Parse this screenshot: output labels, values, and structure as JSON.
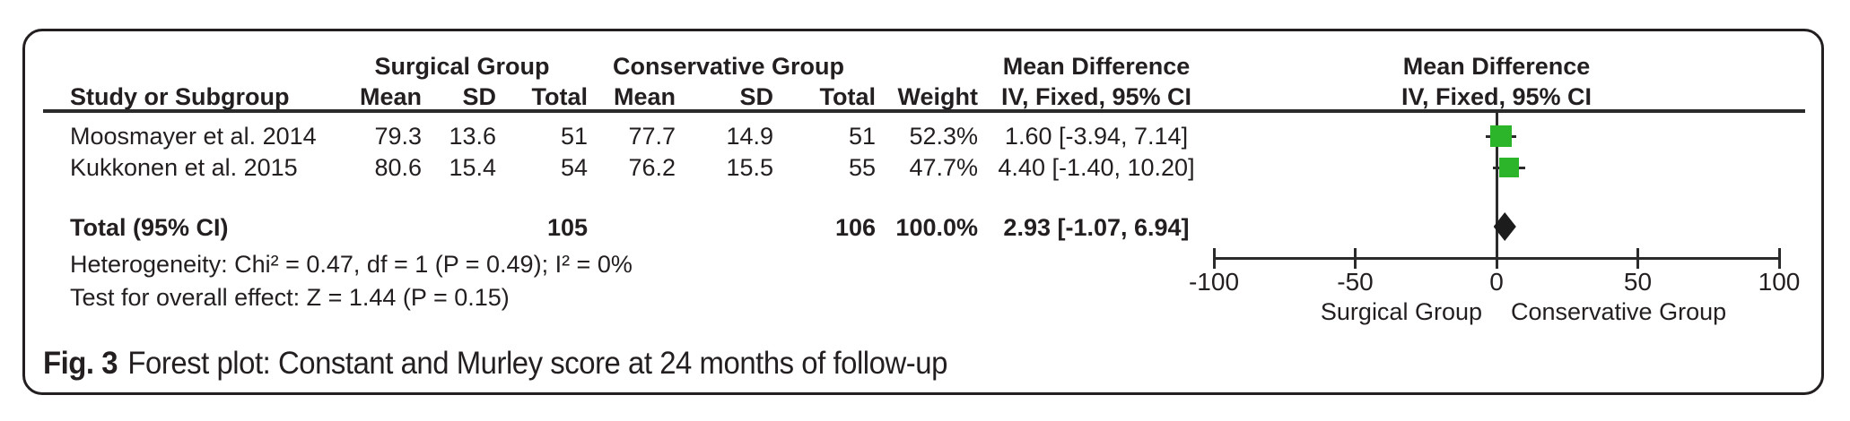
{
  "figure": {
    "caption_label": "Fig. 3",
    "caption_text": "Forest plot: Constant and Murley score at 24 months of follow-up"
  },
  "table": {
    "group_headers": {
      "surgical": "Surgical Group",
      "conservative": "Conservative Group",
      "md_text": "Mean Difference",
      "md_plot": "Mean Difference"
    },
    "col_headers": {
      "study": "Study or Subgroup",
      "mean1": "Mean",
      "sd1": "SD",
      "total1": "Total",
      "mean2": "Mean",
      "sd2": "SD",
      "total2": "Total",
      "weight": "Weight",
      "ci": "IV, Fixed, 95% CI",
      "ci_plot": "IV, Fixed, 95% CI"
    },
    "rows": [
      {
        "study": "Moosmayer et al. 2014",
        "mean1": "79.3",
        "sd1": "13.6",
        "total1": "51",
        "mean2": "77.7",
        "sd2": "14.9",
        "total2": "51",
        "weight": "52.3%",
        "ci": "1.60 [-3.94, 7.14]"
      },
      {
        "study": "Kukkonen et al. 2015",
        "mean1": "80.6",
        "sd1": "15.4",
        "total1": "54",
        "mean2": "76.2",
        "sd2": "15.5",
        "total2": "55",
        "weight": "47.7%",
        "ci": "4.40 [-1.40, 10.20]"
      }
    ],
    "total_row": {
      "label": "Total (95% CI)",
      "total1": "105",
      "total2": "106",
      "weight": "100.0%",
      "ci": "2.93 [-1.07, 6.94]"
    },
    "heterogeneity": "Heterogeneity: Chi² = 0.47, df = 1 (P = 0.49); I² = 0%",
    "overall_effect": "Test for overall effect: Z = 1.44 (P = 0.15)"
  },
  "axis_group_labels": {
    "left": "Surgical Group",
    "right": "Conservative Group"
  },
  "chart_data": {
    "type": "forest",
    "title": "Forest plot: Constant and Murley score at 24 months of follow-up",
    "effect_measure": "Mean Difference IV, Fixed, 95% CI",
    "studies": [
      {
        "name": "Moosmayer et al. 2014",
        "md": 1.6,
        "ci_low": -3.94,
        "ci_high": 7.14,
        "weight_pct": 52.3
      },
      {
        "name": "Kukkonen et al. 2015",
        "md": 4.4,
        "ci_low": -1.4,
        "ci_high": 10.2,
        "weight_pct": 47.7
      }
    ],
    "total": {
      "label": "Total (95% CI)",
      "md": 2.93,
      "ci_low": -1.07,
      "ci_high": 6.94,
      "weight_pct": 100.0
    },
    "heterogeneity": {
      "chi2": 0.47,
      "df": 1,
      "p": 0.49,
      "i2_pct": 0
    },
    "overall_effect": {
      "z": 1.44,
      "p": 0.15
    },
    "axis": {
      "min": -100,
      "max": 100,
      "ticks": [
        -100,
        -50,
        0,
        50,
        100
      ]
    },
    "axis_labels": {
      "left": "Surgical Group",
      "right": "Conservative Group"
    },
    "marker_color": "#2cb42a",
    "diamond_color": "#1c1c1c"
  }
}
